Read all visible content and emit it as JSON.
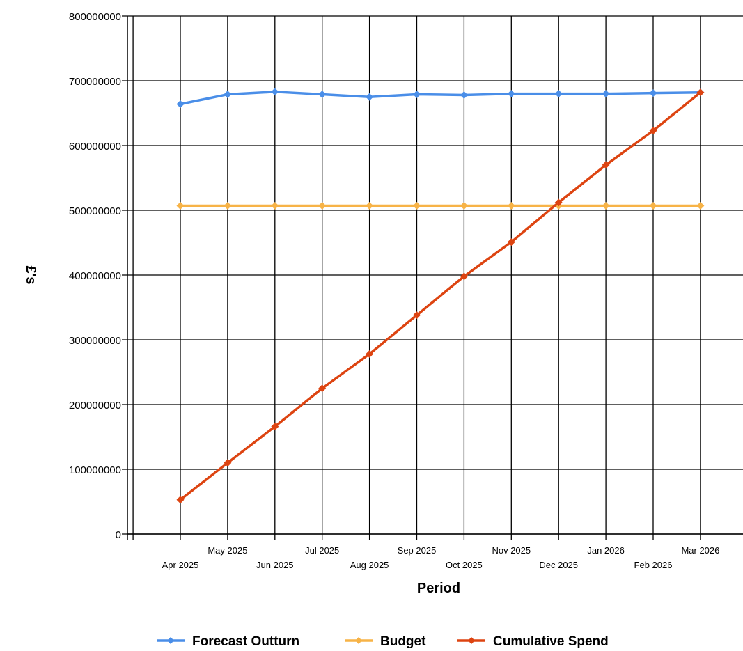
{
  "chart_data": {
    "type": "line",
    "title": "",
    "xlabel": "Period",
    "ylabel": "£'s",
    "ylim": [
      0,
      800000000
    ],
    "yticks": [
      "0",
      "100000000",
      "200000000",
      "300000000",
      "400000000",
      "500000000",
      "600000000",
      "700000000",
      "800000000"
    ],
    "grid": true,
    "legend_position": "bottom",
    "categories": [
      "Apr 2025",
      "May 2025",
      "Jun 2025",
      "Jul 2025",
      "Aug 2025",
      "Sep 2025",
      "Oct 2025",
      "Nov 2025",
      "Dec 2025",
      "Jan 2026",
      "Feb 2026",
      "Mar 2026"
    ],
    "series": [
      {
        "name": "Forecast Outturn",
        "color": "#4a8ee8",
        "values": [
          664000000,
          679000000,
          683000000,
          679000000,
          675000000,
          679000000,
          678000000,
          680000000,
          680000000,
          680000000,
          681000000,
          682000000
        ]
      },
      {
        "name": "Budget",
        "color": "#f7b347",
        "values": [
          507000000,
          507000000,
          507000000,
          507000000,
          507000000,
          507000000,
          507000000,
          507000000,
          507000000,
          507000000,
          507000000,
          507000000
        ]
      },
      {
        "name": "Cumulative Spend",
        "color": "#dd4411",
        "values": [
          53000000,
          110000000,
          166000000,
          225000000,
          278000000,
          338000000,
          398000000,
          451000000,
          512000000,
          570000000,
          623000000,
          682000000
        ]
      }
    ]
  }
}
